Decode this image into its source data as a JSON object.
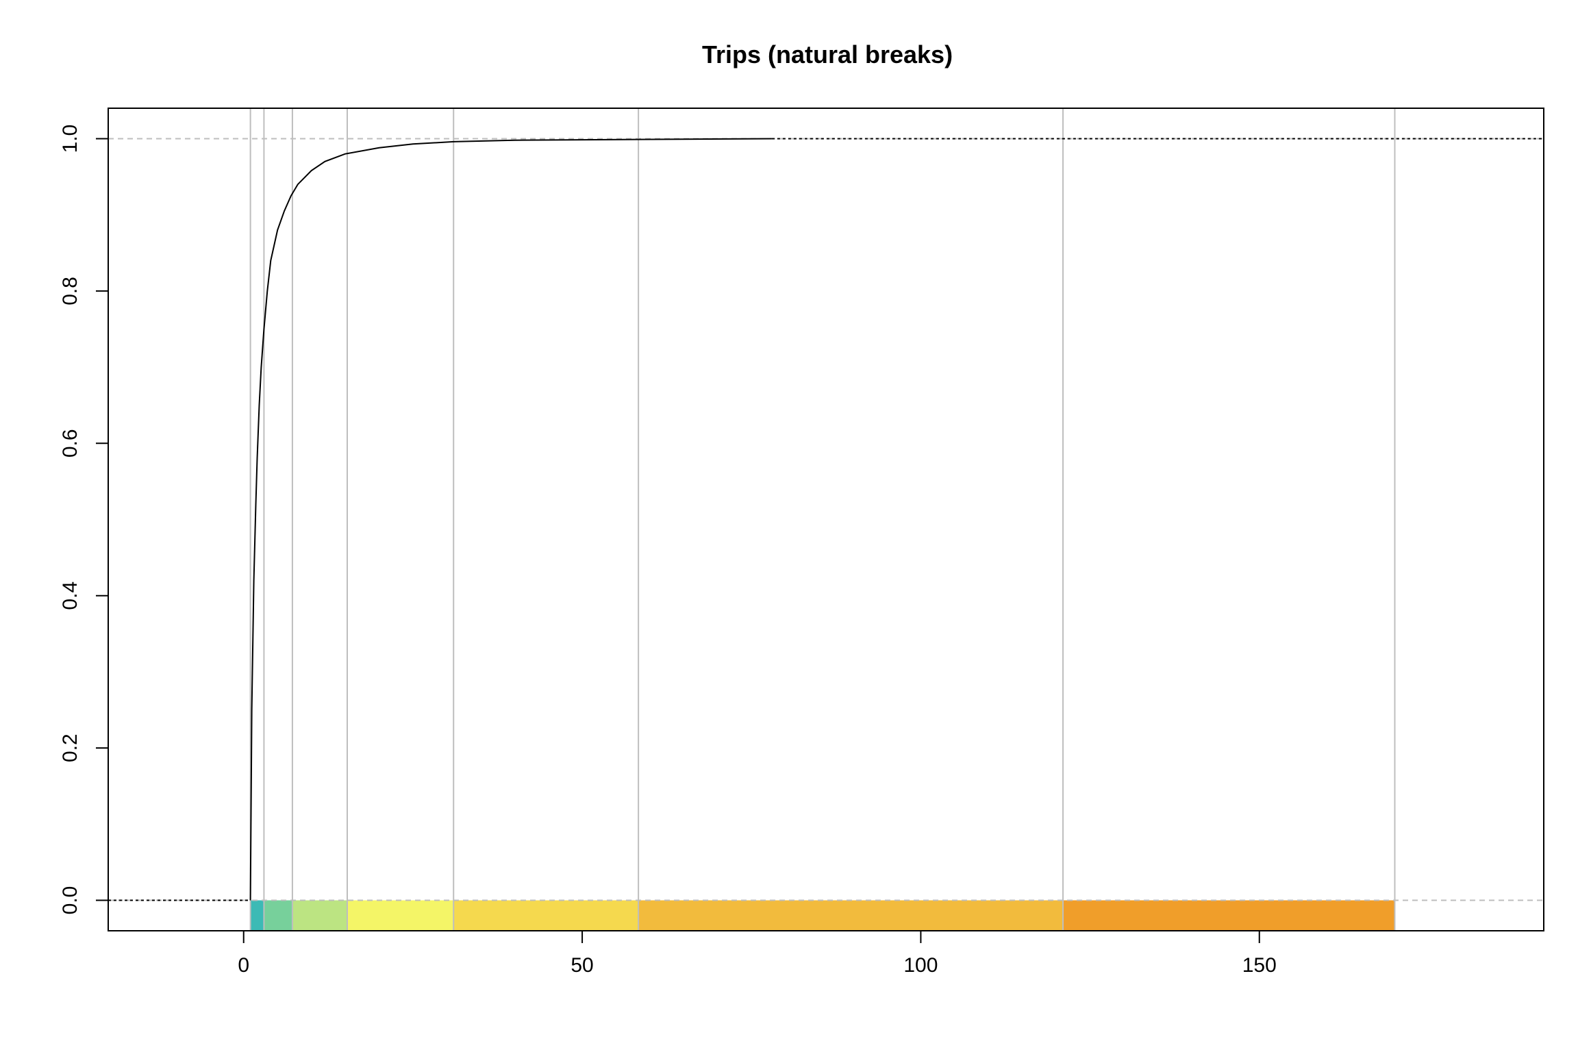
{
  "chart_data": {
    "type": "line",
    "title": "Trips (natural breaks)",
    "xlabel": "",
    "ylabel": "",
    "xlim": [
      -20,
      192
    ],
    "ylim": [
      -0.04,
      1.04
    ],
    "x_ticks": [
      0,
      50,
      100,
      150
    ],
    "x_tick_labels": [
      "0",
      "50",
      "100",
      "150"
    ],
    "y_ticks": [
      0.0,
      0.2,
      0.4,
      0.6,
      0.8,
      1.0
    ],
    "y_tick_labels": [
      "0.0",
      "0.2",
      "0.4",
      "0.6",
      "0.8",
      "1.0"
    ],
    "grid": false,
    "reference_lines_y": [
      0,
      1
    ],
    "class_breaks": [
      1,
      3,
      7.2,
      15.3,
      31,
      58.3,
      121,
      170
    ],
    "class_colors": [
      "#3CBAB5",
      "#77D09B",
      "#BCE482",
      "#F4F567",
      "#F5D94E",
      "#F2BB3D",
      "#F09E2A"
    ],
    "ecdf": {
      "x": [
        1,
        1.2,
        1.5,
        1.8,
        2,
        2.3,
        2.6,
        3,
        3.5,
        4,
        5,
        6,
        7,
        8,
        10,
        12,
        15,
        20,
        25,
        31,
        40,
        58,
        78
      ],
      "y": [
        0.0,
        0.25,
        0.42,
        0.52,
        0.58,
        0.65,
        0.7,
        0.75,
        0.8,
        0.84,
        0.88,
        0.905,
        0.925,
        0.94,
        0.958,
        0.97,
        0.98,
        0.988,
        0.993,
        0.996,
        0.998,
        0.999,
        1.0
      ]
    },
    "colors": {
      "line": "#000000",
      "breaks": "#BEBEBE",
      "ref": "#BEBEBE",
      "frame": "#000000"
    }
  }
}
